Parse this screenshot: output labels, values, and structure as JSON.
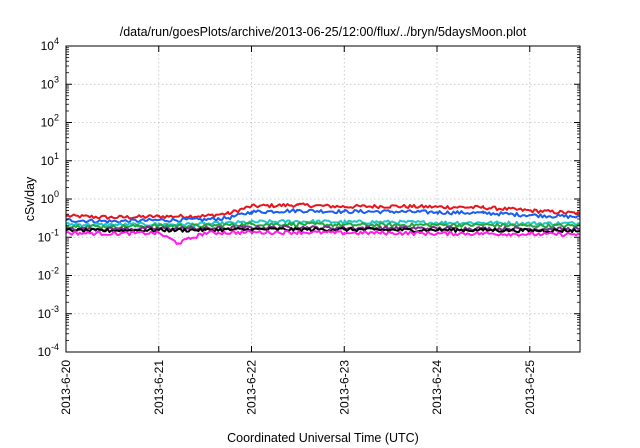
{
  "chart_data": {
    "type": "line",
    "title": "/data/run/goesPlots/archive/2013-06-25/12:00/flux/../bryn/5daysMoon.plot",
    "xlabel": "Coordinated Universal Time (UTC)",
    "ylabel": "cSv/day",
    "xscale": "time",
    "yscale": "log",
    "xlim": [
      "2013-06-20",
      "2013-06-25T13:00"
    ],
    "ylim": [
      0.0001,
      10000
    ],
    "grid": true,
    "legend": "none",
    "x_ticks": [
      "2013-6-20",
      "2013-6-21",
      "2013-6-22",
      "2013-6-23",
      "2013-6-24",
      "2013-6-25"
    ],
    "y_ticks": [
      {
        "value": 0.0001,
        "base": "10",
        "exp": "-4"
      },
      {
        "value": 0.001,
        "base": "10",
        "exp": "-3"
      },
      {
        "value": 0.01,
        "base": "10",
        "exp": "-2"
      },
      {
        "value": 0.1,
        "base": "10",
        "exp": "-1"
      },
      {
        "value": 1,
        "base": "10",
        "exp": "0"
      },
      {
        "value": 10,
        "base": "10",
        "exp": "1"
      },
      {
        "value": 100,
        "base": "10",
        "exp": "2"
      },
      {
        "value": 1000,
        "base": "10",
        "exp": "3"
      },
      {
        "value": 10000,
        "base": "10",
        "exp": "4"
      }
    ],
    "series": [
      {
        "color": "#e8141c",
        "values": [
          {
            "x": "2013-06-20T00:00",
            "y": 0.36
          },
          {
            "x": "2013-06-20T12:00",
            "y": 0.33
          },
          {
            "x": "2013-06-21T00:00",
            "y": 0.35
          },
          {
            "x": "2013-06-21T12:00",
            "y": 0.36
          },
          {
            "x": "2013-06-21T18:00",
            "y": 0.42
          },
          {
            "x": "2013-06-22T00:00",
            "y": 0.65
          },
          {
            "x": "2013-06-22T12:00",
            "y": 0.7
          },
          {
            "x": "2013-06-23T00:00",
            "y": 0.63
          },
          {
            "x": "2013-06-23T12:00",
            "y": 0.65
          },
          {
            "x": "2013-06-24T00:00",
            "y": 0.62
          },
          {
            "x": "2013-06-24T12:00",
            "y": 0.6
          },
          {
            "x": "2013-06-25T00:00",
            "y": 0.5
          },
          {
            "x": "2013-06-25T13:00",
            "y": 0.42
          }
        ]
      },
      {
        "color": "#1a5ef0",
        "values": [
          {
            "x": "2013-06-20T00:00",
            "y": 0.28
          },
          {
            "x": "2013-06-20T12:00",
            "y": 0.26
          },
          {
            "x": "2013-06-21T00:00",
            "y": 0.28
          },
          {
            "x": "2013-06-21T12:00",
            "y": 0.29
          },
          {
            "x": "2013-06-21T18:00",
            "y": 0.32
          },
          {
            "x": "2013-06-22T00:00",
            "y": 0.46
          },
          {
            "x": "2013-06-22T12:00",
            "y": 0.5
          },
          {
            "x": "2013-06-23T00:00",
            "y": 0.47
          },
          {
            "x": "2013-06-23T12:00",
            "y": 0.47
          },
          {
            "x": "2013-06-24T00:00",
            "y": 0.45
          },
          {
            "x": "2013-06-24T12:00",
            "y": 0.43
          },
          {
            "x": "2013-06-25T00:00",
            "y": 0.38
          },
          {
            "x": "2013-06-25T13:00",
            "y": 0.34
          }
        ]
      },
      {
        "color": "#1ec8c8",
        "values": [
          {
            "x": "2013-06-20T00:00",
            "y": 0.22
          },
          {
            "x": "2013-06-20T12:00",
            "y": 0.21
          },
          {
            "x": "2013-06-21T00:00",
            "y": 0.22
          },
          {
            "x": "2013-06-21T12:00",
            "y": 0.22
          },
          {
            "x": "2013-06-22T00:00",
            "y": 0.25
          },
          {
            "x": "2013-06-22T12:00",
            "y": 0.26
          },
          {
            "x": "2013-06-23T00:00",
            "y": 0.25
          },
          {
            "x": "2013-06-23T12:00",
            "y": 0.25
          },
          {
            "x": "2013-06-24T00:00",
            "y": 0.24
          },
          {
            "x": "2013-06-24T12:00",
            "y": 0.24
          },
          {
            "x": "2013-06-25T00:00",
            "y": 0.23
          },
          {
            "x": "2013-06-25T13:00",
            "y": 0.23
          }
        ]
      },
      {
        "color": "#22a83c",
        "values": [
          {
            "x": "2013-06-20T00:00",
            "y": 0.2
          },
          {
            "x": "2013-06-20T12:00",
            "y": 0.19
          },
          {
            "x": "2013-06-21T00:00",
            "y": 0.2
          },
          {
            "x": "2013-06-21T12:00",
            "y": 0.2
          },
          {
            "x": "2013-06-22T00:00",
            "y": 0.22
          },
          {
            "x": "2013-06-22T12:00",
            "y": 0.22
          },
          {
            "x": "2013-06-23T00:00",
            "y": 0.21
          },
          {
            "x": "2013-06-23T12:00",
            "y": 0.21
          },
          {
            "x": "2013-06-24T00:00",
            "y": 0.21
          },
          {
            "x": "2013-06-24T12:00",
            "y": 0.21
          },
          {
            "x": "2013-06-25T00:00",
            "y": 0.2
          },
          {
            "x": "2013-06-25T13:00",
            "y": 0.2
          }
        ]
      },
      {
        "color": "#7a2e8c",
        "values": [
          {
            "x": "2013-06-20T00:00",
            "y": 0.17
          },
          {
            "x": "2013-06-20T12:00",
            "y": 0.165
          },
          {
            "x": "2013-06-21T00:00",
            "y": 0.17
          },
          {
            "x": "2013-06-21T12:00",
            "y": 0.17
          },
          {
            "x": "2013-06-22T00:00",
            "y": 0.18
          },
          {
            "x": "2013-06-22T12:00",
            "y": 0.18
          },
          {
            "x": "2013-06-23T00:00",
            "y": 0.175
          },
          {
            "x": "2013-06-23T12:00",
            "y": 0.175
          },
          {
            "x": "2013-06-24T00:00",
            "y": 0.17
          },
          {
            "x": "2013-06-24T12:00",
            "y": 0.17
          },
          {
            "x": "2013-06-25T00:00",
            "y": 0.165
          },
          {
            "x": "2013-06-25T13:00",
            "y": 0.165
          }
        ]
      },
      {
        "color": "#000000",
        "values": [
          {
            "x": "2013-06-20T00:00",
            "y": 0.15
          },
          {
            "x": "2013-06-20T12:00",
            "y": 0.15
          },
          {
            "x": "2013-06-21T00:00",
            "y": 0.155
          },
          {
            "x": "2013-06-21T12:00",
            "y": 0.155
          },
          {
            "x": "2013-06-22T00:00",
            "y": 0.16
          },
          {
            "x": "2013-06-22T12:00",
            "y": 0.16
          },
          {
            "x": "2013-06-23T00:00",
            "y": 0.16
          },
          {
            "x": "2013-06-23T12:00",
            "y": 0.155
          },
          {
            "x": "2013-06-24T00:00",
            "y": 0.155
          },
          {
            "x": "2013-06-24T12:00",
            "y": 0.155
          },
          {
            "x": "2013-06-25T00:00",
            "y": 0.15
          },
          {
            "x": "2013-06-25T13:00",
            "y": 0.15
          }
        ]
      },
      {
        "color": "#ff1ee6",
        "values": [
          {
            "x": "2013-06-20T00:00",
            "y": 0.13
          },
          {
            "x": "2013-06-20T12:00",
            "y": 0.125
          },
          {
            "x": "2013-06-21T00:00",
            "y": 0.13
          },
          {
            "x": "2013-06-21T05:00",
            "y": 0.07
          },
          {
            "x": "2013-06-21T12:00",
            "y": 0.13
          },
          {
            "x": "2013-06-22T00:00",
            "y": 0.135
          },
          {
            "x": "2013-06-22T12:00",
            "y": 0.135
          },
          {
            "x": "2013-06-23T00:00",
            "y": 0.13
          },
          {
            "x": "2013-06-23T12:00",
            "y": 0.13
          },
          {
            "x": "2013-06-24T00:00",
            "y": 0.125
          },
          {
            "x": "2013-06-24T12:00",
            "y": 0.125
          },
          {
            "x": "2013-06-25T00:00",
            "y": 0.12
          },
          {
            "x": "2013-06-25T13:00",
            "y": 0.12
          }
        ]
      }
    ]
  }
}
